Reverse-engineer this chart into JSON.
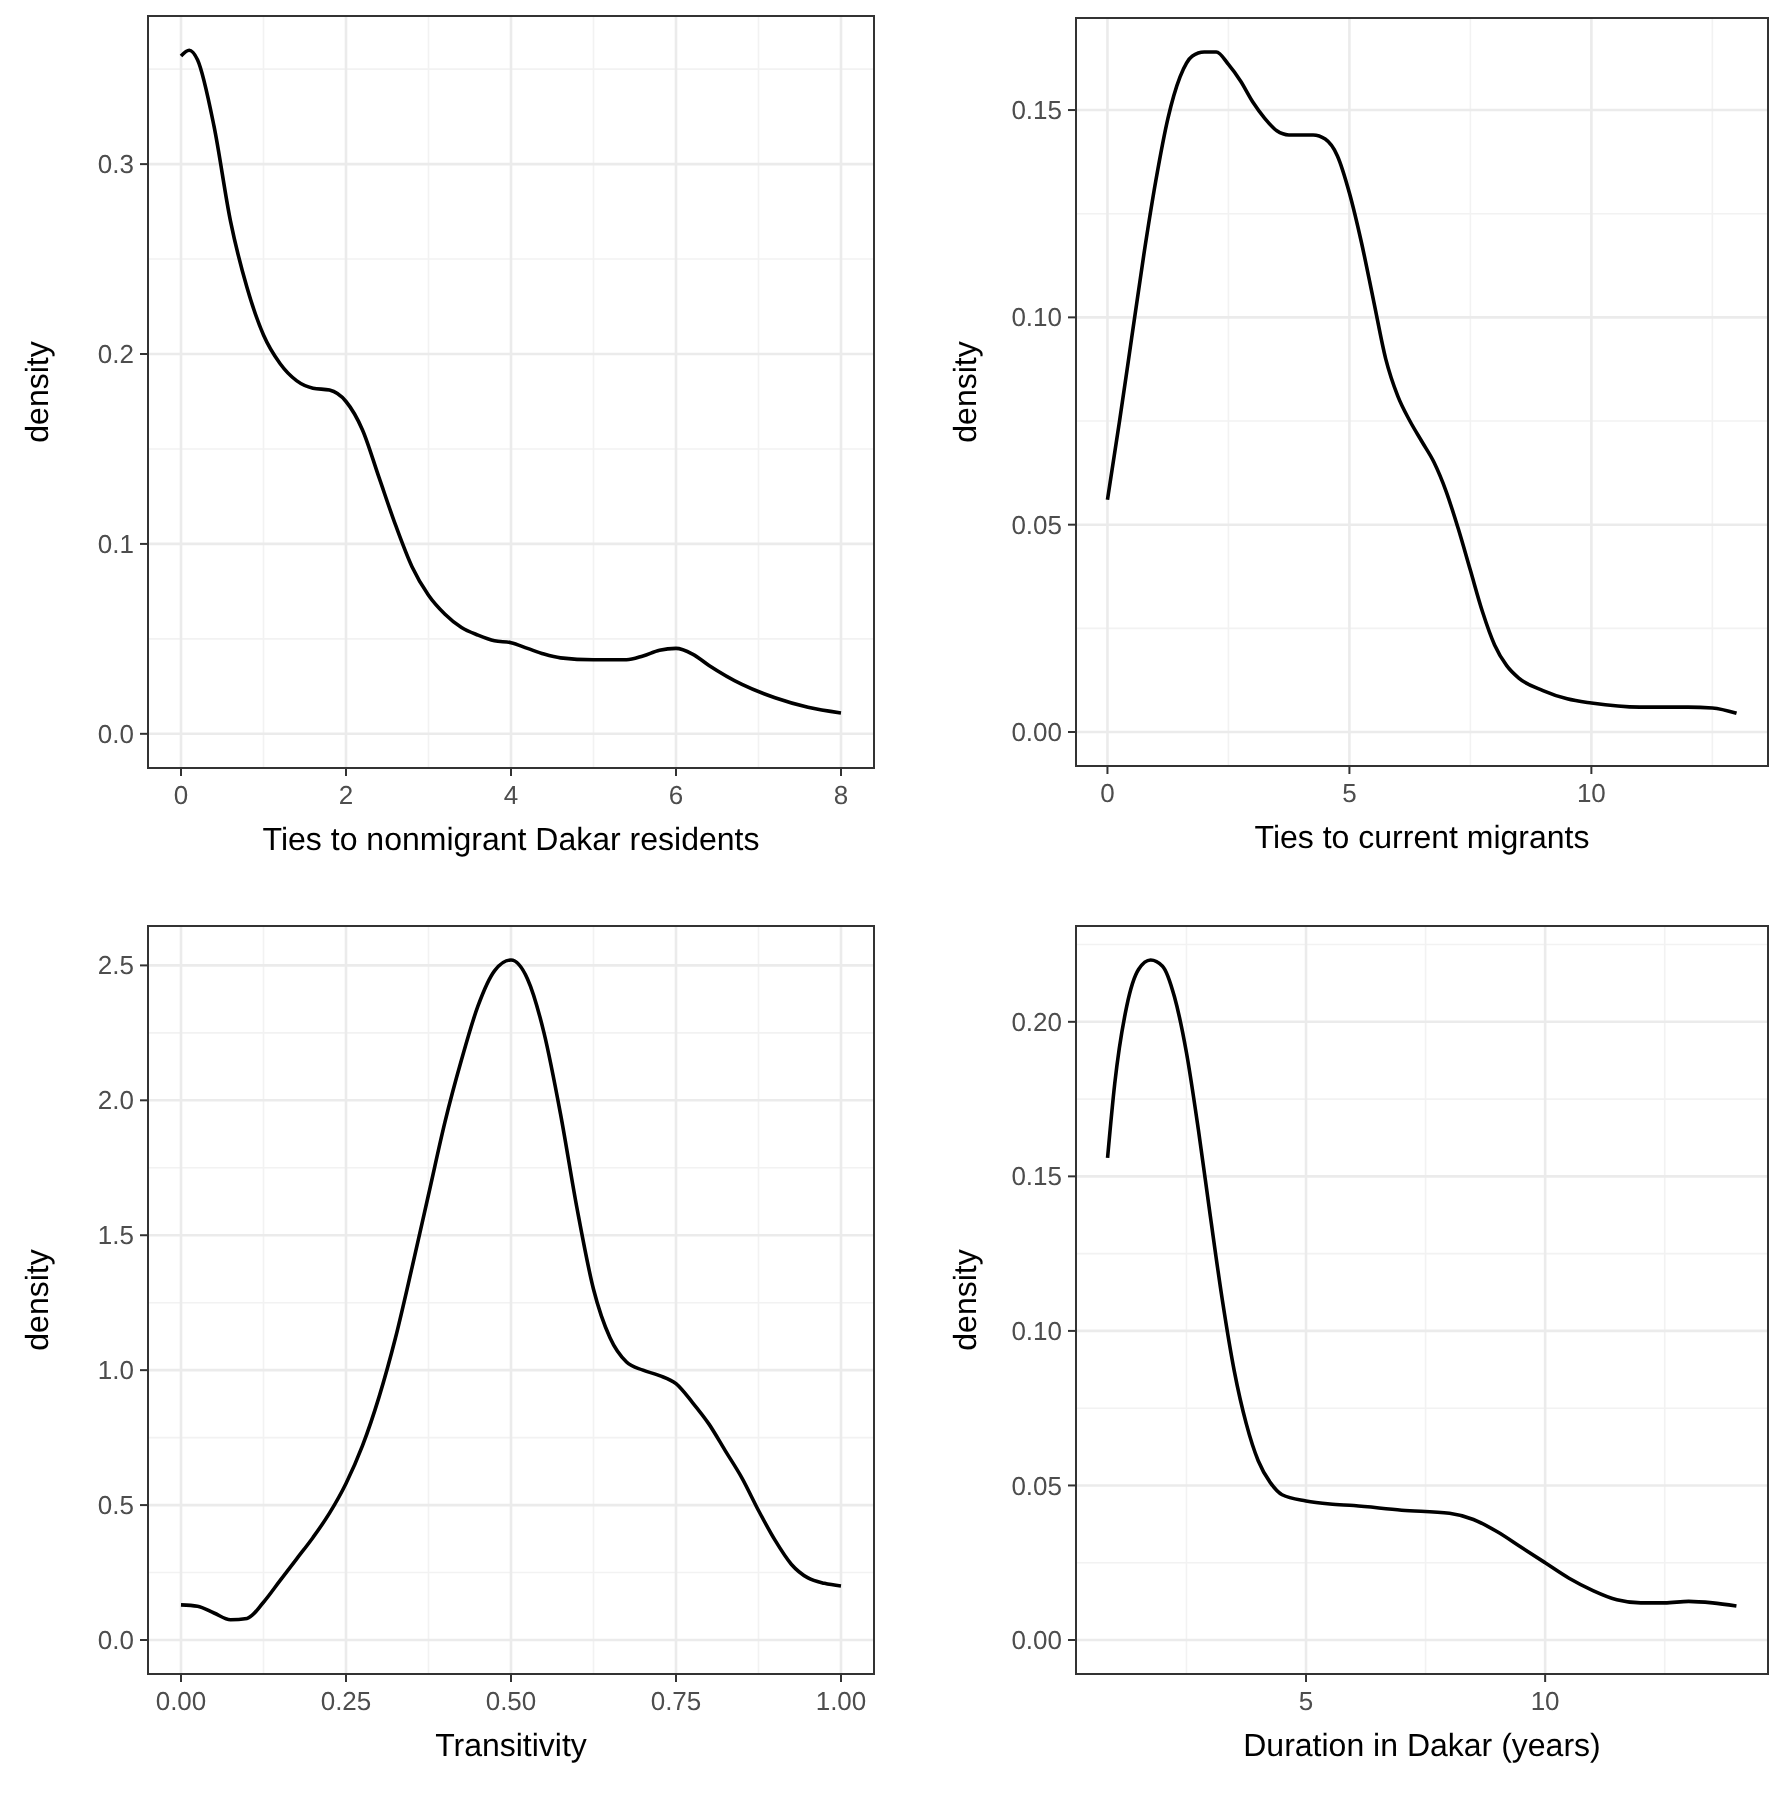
{
  "chart_data": [
    {
      "type": "line",
      "xlabel": "Ties to nonmigrant Dakar residents",
      "ylabel": "density",
      "color": "#000000",
      "grid": true,
      "xlim": [
        -0.4,
        8.4
      ],
      "ylim": [
        -0.018,
        0.378
      ],
      "xticks": [
        0,
        2,
        4,
        6,
        8
      ],
      "yticks": [
        {
          "value": 0,
          "label": "0.0"
        },
        0.1,
        0.2,
        0.3
      ],
      "x": [
        0,
        0.1,
        0.2,
        0.4,
        0.6,
        0.8,
        1.0,
        1.2,
        1.4,
        1.6,
        1.8,
        2.0,
        2.2,
        2.4,
        2.6,
        2.8,
        3.0,
        3.2,
        3.4,
        3.6,
        3.8,
        4.0,
        4.2,
        4.4,
        4.6,
        5.0,
        5.4,
        5.6,
        5.8,
        6.0,
        6.2,
        6.4,
        6.8,
        7.2,
        7.6,
        8.0
      ],
      "values": [
        0.357,
        0.36,
        0.355,
        0.32,
        0.27,
        0.235,
        0.21,
        0.195,
        0.186,
        0.182,
        0.181,
        0.175,
        0.16,
        0.135,
        0.11,
        0.088,
        0.073,
        0.063,
        0.056,
        0.052,
        0.049,
        0.048,
        0.045,
        0.042,
        0.04,
        0.039,
        0.039,
        0.041,
        0.044,
        0.045,
        0.042,
        0.036,
        0.026,
        0.019,
        0.014,
        0.011
      ]
    },
    {
      "type": "line",
      "xlabel": "Ties to current migrants",
      "ylabel": "density",
      "color": "#000000",
      "grid": true,
      "xlim": [
        -0.65,
        13.65
      ],
      "ylim": [
        -0.0082,
        0.1722
      ],
      "xticks": [
        0,
        5,
        10
      ],
      "yticks": [
        {
          "value": 0,
          "label": "0.00"
        },
        0.05,
        {
          "value": 0.1,
          "label": "0.10"
        },
        0.15
      ],
      "x": [
        0,
        0.25,
        0.5,
        0.75,
        1.0,
        1.25,
        1.5,
        1.75,
        2.0,
        2.25,
        2.5,
        2.75,
        3.0,
        3.25,
        3.5,
        3.75,
        4.0,
        4.25,
        4.5,
        4.75,
        5.0,
        5.25,
        5.5,
        5.75,
        6.0,
        6.25,
        6.5,
        6.75,
        7.0,
        7.25,
        7.5,
        7.75,
        8.0,
        8.25,
        8.5,
        9.0,
        9.5,
        10.0,
        11.0,
        12.0,
        12.5,
        13.0
      ],
      "values": [
        0.056,
        0.075,
        0.095,
        0.115,
        0.133,
        0.148,
        0.158,
        0.163,
        0.164,
        0.164,
        0.161,
        0.157,
        0.152,
        0.148,
        0.145,
        0.144,
        0.144,
        0.144,
        0.143,
        0.139,
        0.13,
        0.118,
        0.104,
        0.09,
        0.081,
        0.075,
        0.07,
        0.065,
        0.058,
        0.049,
        0.039,
        0.029,
        0.021,
        0.016,
        0.013,
        0.01,
        0.008,
        0.007,
        0.006,
        0.006,
        0.0058,
        0.0045
      ]
    },
    {
      "type": "line",
      "xlabel": "Transitivity",
      "ylabel": "density",
      "color": "#000000",
      "grid": true,
      "xlim": [
        -0.05,
        1.05
      ],
      "ylim": [
        -0.126,
        2.646
      ],
      "xticks": [
        {
          "value": 0,
          "label": "0.00"
        },
        0.25,
        {
          "value": 0.5,
          "label": "0.50"
        },
        0.75,
        {
          "value": 1,
          "label": "1.00"
        }
      ],
      "yticks": [
        {
          "value": 0,
          "label": "0.0"
        },
        0.5,
        {
          "value": 1,
          "label": "1.0"
        },
        1.5,
        {
          "value": 2,
          "label": "2.0"
        },
        2.5
      ],
      "x": [
        0,
        0.025,
        0.05,
        0.075,
        0.1,
        0.125,
        0.15,
        0.175,
        0.2,
        0.225,
        0.25,
        0.275,
        0.3,
        0.325,
        0.35,
        0.375,
        0.4,
        0.425,
        0.45,
        0.475,
        0.5,
        0.525,
        0.55,
        0.575,
        0.6,
        0.625,
        0.65,
        0.675,
        0.7,
        0.725,
        0.75,
        0.775,
        0.8,
        0.825,
        0.85,
        0.875,
        0.9,
        0.925,
        0.95,
        0.975,
        1.0
      ],
      "values": [
        0.13,
        0.125,
        0.1,
        0.075,
        0.08,
        0.14,
        0.22,
        0.3,
        0.38,
        0.47,
        0.58,
        0.72,
        0.9,
        1.12,
        1.38,
        1.65,
        1.92,
        2.15,
        2.35,
        2.48,
        2.52,
        2.45,
        2.25,
        1.95,
        1.6,
        1.3,
        1.12,
        1.03,
        1.0,
        0.98,
        0.95,
        0.88,
        0.8,
        0.7,
        0.6,
        0.48,
        0.37,
        0.28,
        0.23,
        0.21,
        0.2
      ]
    },
    {
      "type": "line",
      "xlabel": "Duration in Dakar (years)",
      "ylabel": "density",
      "color": "#000000",
      "grid": true,
      "xlim": [
        0.19,
        14.66
      ],
      "ylim": [
        -0.011,
        0.231
      ],
      "xticks": [
        5,
        10
      ],
      "yticks": [
        {
          "value": 0,
          "label": "0.00"
        },
        0.05,
        {
          "value": 0.1,
          "label": "0.10"
        },
        0.15,
        {
          "value": 0.2,
          "label": "0.20"
        }
      ],
      "x": [
        0.85,
        1.0,
        1.25,
        1.5,
        1.75,
        2.0,
        2.25,
        2.5,
        2.75,
        3.0,
        3.25,
        3.5,
        3.75,
        4.0,
        4.25,
        4.5,
        5,
        5.5,
        6,
        7,
        8,
        8.5,
        9,
        9.5,
        10,
        10.5,
        11,
        11.5,
        12,
        12.5,
        13,
        13.5,
        14
      ],
      "values": [
        0.156,
        0.18,
        0.205,
        0.217,
        0.22,
        0.218,
        0.208,
        0.19,
        0.165,
        0.137,
        0.11,
        0.087,
        0.07,
        0.058,
        0.051,
        0.047,
        0.045,
        0.044,
        0.0435,
        0.042,
        0.041,
        0.039,
        0.035,
        0.03,
        0.025,
        0.02,
        0.016,
        0.013,
        0.012,
        0.012,
        0.0125,
        0.012,
        0.011
      ]
    }
  ]
}
